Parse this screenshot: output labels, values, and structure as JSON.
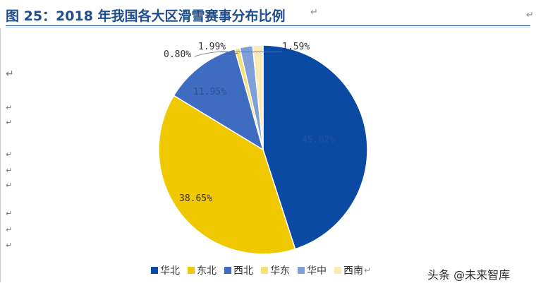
{
  "title": "图 25：2018 年我国各大区滑雪赛事分布比例",
  "watermark": "头条 @未来智库",
  "chart_data": {
    "type": "pie",
    "title": "图 25：2018 年我国各大区滑雪赛事分布比例",
    "categories": [
      "华北",
      "东北",
      "西北",
      "华东",
      "华中",
      "西南"
    ],
    "values": [
      45.02,
      38.65,
      11.95,
      0.8,
      1.99,
      1.59
    ],
    "labels": [
      "45.02%",
      "38.65%",
      "11.95%",
      "0.80%",
      "1.99%",
      "1.59%"
    ],
    "colors": [
      "#0a4aa3",
      "#f0c800",
      "#3e6cc0",
      "#f4e17a",
      "#7f9fd8",
      "#fbeab5"
    ],
    "legend_position": "bottom",
    "start_angle_deg": 0,
    "direction": "clockwise"
  }
}
